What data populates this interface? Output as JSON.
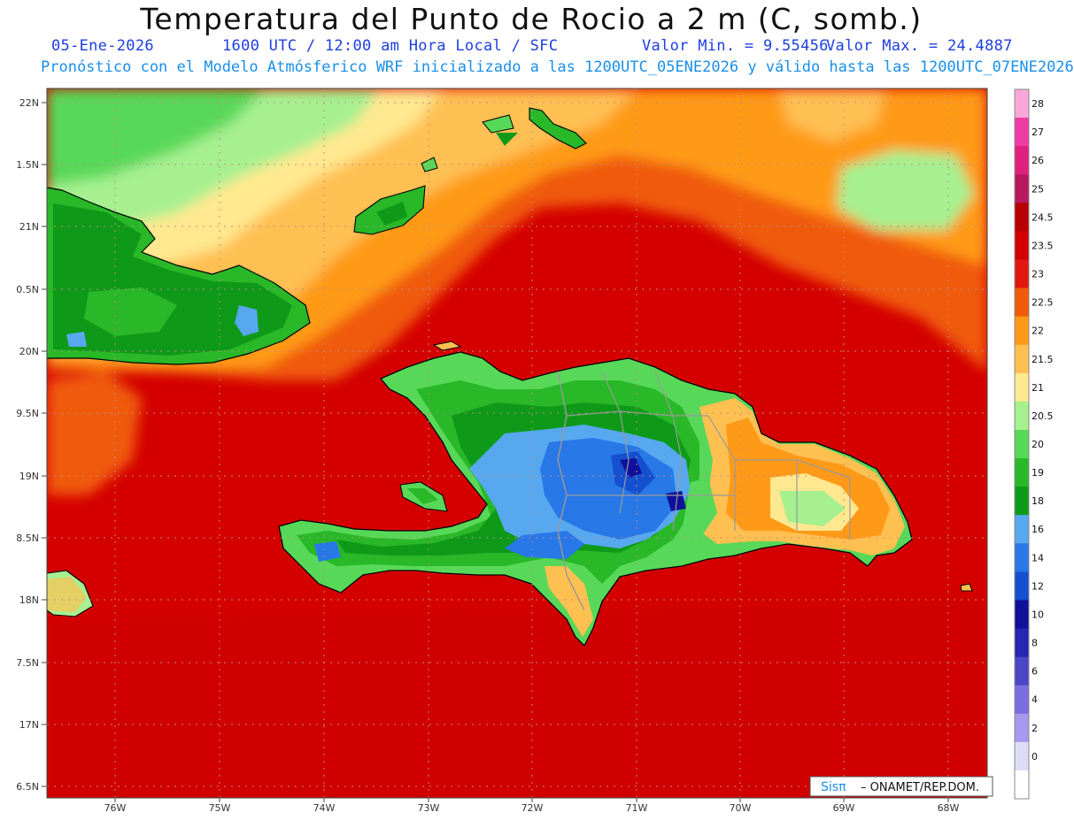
{
  "title": "Temperatura del Punto de Rocio a 2 m (C, somb.)",
  "subtitle": {
    "date": "05-Ene-2026",
    "time": "1600 UTC / 12:00 am Hora Local / SFC",
    "vmin": "Valor Min. = 9.55456",
    "vmax": "Valor Max. = 24.4887",
    "info": "Pronóstico con el Modelo Atmósferico WRF inicializado a las 1200UTC_05ENE2026 y válido hasta las  1200UTC_07ENE2026"
  },
  "lat_labels": [
    "22N",
    "1.5N",
    "21N",
    "0.5N",
    "20N",
    "9.5N",
    "19N",
    "8.5N",
    "18N",
    "7.5N",
    "17N",
    "6.5N"
  ],
  "lon_labels": [
    "76W",
    "75W",
    "74W",
    "73W",
    "72W",
    "71W",
    "70W",
    "69W",
    "68W"
  ],
  "legend": {
    "levels": [
      "28",
      "27",
      "26",
      "25",
      "24.5",
      "23.5",
      "23",
      "22.5",
      "22",
      "21.5",
      "21",
      "20.5",
      "20",
      "19",
      "18",
      "16",
      "14",
      "12",
      "10",
      "8",
      "6",
      "4",
      "2",
      "0"
    ],
    "colors": [
      "#f7a8d8",
      "#ee3aa3",
      "#e0207e",
      "#b8185e",
      "#b80000",
      "#d40000",
      "#e01810",
      "#f05a08",
      "#ff9a18",
      "#ffc052",
      "#ffe890",
      "#a6f090",
      "#58d858",
      "#28b828",
      "#0e9a18",
      "#58a8f0",
      "#2878e8",
      "#1450d0",
      "#10109a",
      "#2626b2",
      "#4a46c6",
      "#7a6ee0",
      "#a898ee",
      "#dcdcf6",
      "#ffffff"
    ]
  },
  "credit": {
    "brand": "Sisπ",
    "text": "– ONAMET/REP.DOM."
  },
  "colors": {
    "ocean": "#d80808",
    "title": "#111111",
    "subtitle": "#1d3fe0",
    "info": "#1a8fe8"
  }
}
